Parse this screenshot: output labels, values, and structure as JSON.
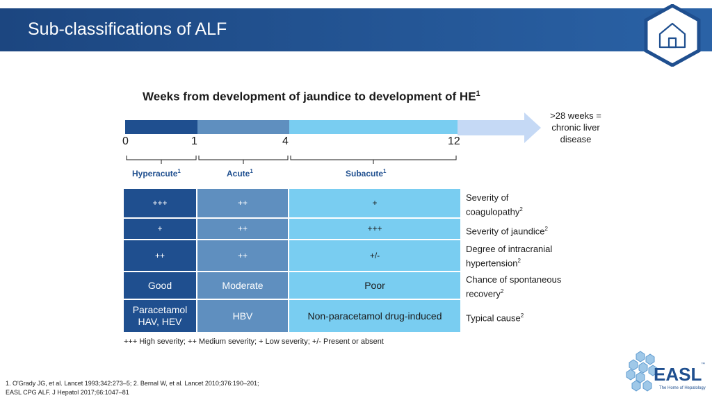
{
  "header": {
    "title": "Sub-classifications of ALF",
    "home_icon": "home-icon"
  },
  "section_heading": "Weeks from development of jaundice to development of HE",
  "section_heading_sup": "1",
  "timeline": {
    "ticks": [
      "0",
      "1",
      "4",
      "12"
    ],
    "chronic_note": ">28 weeks = chronic liver disease",
    "categories": [
      {
        "label": "Hyperacute",
        "sup": "1"
      },
      {
        "label": "Acute",
        "sup": "1"
      },
      {
        "label": "Subacute",
        "sup": "1"
      }
    ],
    "colors": {
      "hyperacute": "#1f4f8f",
      "acute": "#5f8fbf",
      "subacute": "#79cdf1",
      "chronic": "#c5d9f5"
    }
  },
  "table": {
    "rows": [
      {
        "hyperacute": "+++",
        "acute": "++",
        "subacute": "+",
        "label": "Severity of coagulopathy",
        "label_sup": "2"
      },
      {
        "hyperacute": "+",
        "acute": "++",
        "subacute": "+++",
        "label": "Severity of jaundice",
        "label_sup": "2"
      },
      {
        "hyperacute": "++",
        "acute": "++",
        "subacute": "+/-",
        "label": "Degree of intracranial hypertension",
        "label_sup": "2"
      },
      {
        "hyperacute": "Good",
        "acute": "Moderate",
        "subacute": "Poor",
        "label": "Chance of spontaneous recovery",
        "label_sup": "2"
      },
      {
        "hyperacute": "Paracetamol HAV, HEV",
        "acute": "HBV",
        "subacute": "Non-paracetamol drug-induced",
        "label": "Typical cause",
        "label_sup": "2"
      }
    ]
  },
  "legend": "+++ High severity; ++ Medium severity; + Low severity; +/- Present or absent",
  "references": {
    "line1": "1. O'Grady JG, et al. Lancet 1993;342:273–5; 2. Bernal W, et al. Lancet 2010;376:190–201;",
    "line2": "EASL CPG ALF. J Hepatol 2017;66:1047–81"
  },
  "logo": {
    "text": "EASL",
    "tagline": "The Home of Hepatology",
    "trademark": "™"
  }
}
